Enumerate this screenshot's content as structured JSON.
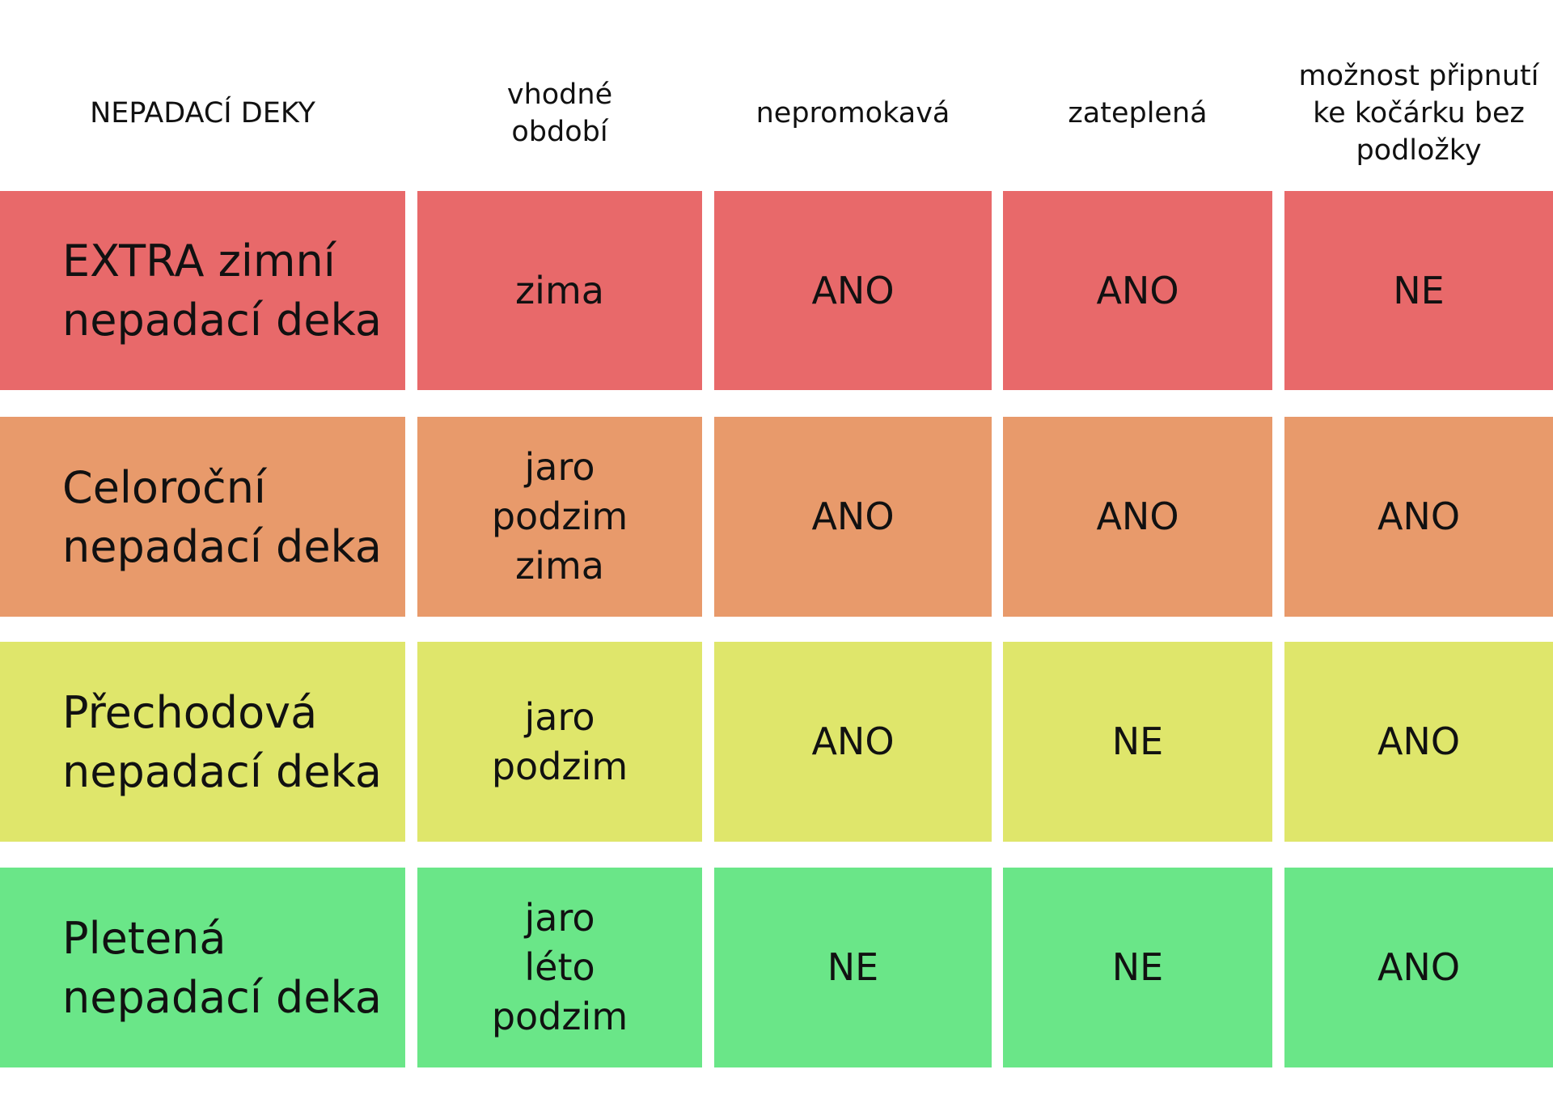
{
  "header": [
    "NEPADACÍ DEKY",
    "vhodné\nobdobí",
    "nepromokavá",
    "zateplená",
    "možnost připnutí\nke kočárku bez\npodložky"
  ],
  "rows": [
    {
      "color": "#e8696a",
      "cells": [
        "EXTRA zimní\nnepadací deka",
        "zima",
        "ANO",
        "ANO",
        "NE"
      ]
    },
    {
      "color": "#e89a6b",
      "cells": [
        "Celoroční\nnepadací deka",
        "jaro\npodzim\nzima",
        "ANO",
        "ANO",
        "ANO"
      ]
    },
    {
      "color": "#dfe66b",
      "cells": [
        "Přechodová\nnepadací deka",
        "jaro\npodzim",
        "ANO",
        "NE",
        "ANO"
      ]
    },
    {
      "color": "#6ae688",
      "cells": [
        "Pletená\nnepadací deka",
        "jaro\nléto\npodzim",
        "NE",
        "NE",
        "ANO"
      ]
    }
  ]
}
